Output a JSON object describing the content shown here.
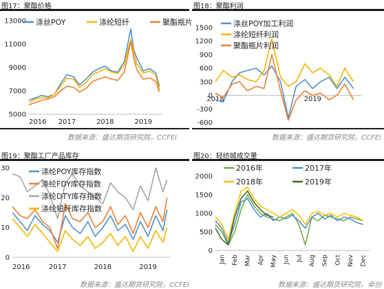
{
  "panels": [
    {
      "title": "图17：聚酯价格",
      "source": "数据来源：盛达期货研究院，CCFEI"
    },
    {
      "title": "图18：聚酯利润",
      "source": "数据来源：盛达期货研究院，CCFEI"
    },
    {
      "title": "图19：聚酯工厂产品库存",
      "source": "数据来源：盛达期货研究院，CCFEI"
    },
    {
      "title": "图20：轻纺城成交量",
      "source": "数据来源：盛达期货研究院，卓创"
    }
  ],
  "chart_data": [
    {
      "type": "line",
      "title": "图17：聚酯价格",
      "ylim": [
        5000,
        13000
      ],
      "yticks": [
        "13000",
        "11000",
        "9000",
        "7000",
        "5000"
      ],
      "xticks": [
        "2016",
        "2017",
        "2018",
        "2019"
      ],
      "legend_position": "top",
      "colors": {
        "涤丝POY": "#4f8fcc",
        "涤纶短纤": "#f2b500",
        "聚酯瓶片": "#ed7d31"
      },
      "series": [
        {
          "name": "涤丝POY",
          "x": [
            2016.0,
            2016.17,
            2016.33,
            2016.5,
            2016.67,
            2016.83,
            2017.0,
            2017.17,
            2017.33,
            2017.5,
            2017.67,
            2017.83,
            2018.0,
            2018.17,
            2018.33,
            2018.5,
            2018.58,
            2018.67,
            2018.75,
            2018.83,
            2019.0,
            2019.17,
            2019.33,
            2019.42
          ],
          "values": [
            6200,
            6400,
            6600,
            6500,
            6700,
            7600,
            8400,
            8200,
            7500,
            8000,
            8600,
            8900,
            9100,
            8700,
            8600,
            9500,
            10800,
            12300,
            10500,
            9800,
            8700,
            8900,
            8500,
            7400
          ]
        },
        {
          "name": "涤纶短纤",
          "x": [
            2016.0,
            2016.17,
            2016.33,
            2016.5,
            2016.67,
            2016.83,
            2017.0,
            2017.17,
            2017.33,
            2017.5,
            2017.67,
            2017.83,
            2018.0,
            2018.17,
            2018.33,
            2018.5,
            2018.58,
            2018.67,
            2018.75,
            2018.83,
            2019.0,
            2019.17,
            2019.33,
            2019.42
          ],
          "values": [
            6000,
            6300,
            6400,
            6400,
            6700,
            7400,
            8100,
            8000,
            7300,
            7700,
            8400,
            8600,
            8900,
            8600,
            8500,
            9200,
            10300,
            11400,
            10300,
            9300,
            8500,
            8700,
            8300,
            7100
          ]
        },
        {
          "name": "聚酯瓶片",
          "x": [
            2016.0,
            2016.17,
            2016.33,
            2016.5,
            2016.67,
            2016.83,
            2017.0,
            2017.17,
            2017.33,
            2017.5,
            2017.67,
            2017.83,
            2018.0,
            2018.17,
            2018.33,
            2018.5,
            2018.58,
            2018.67,
            2018.75,
            2018.83,
            2019.0,
            2019.17,
            2019.33,
            2019.42
          ],
          "values": [
            5800,
            6000,
            6200,
            6300,
            6500,
            7000,
            7400,
            7300,
            6900,
            7200,
            7800,
            8000,
            8200,
            8000,
            7900,
            8600,
            9800,
            11200,
            9800,
            8800,
            8000,
            8100,
            7800,
            6900
          ]
        }
      ]
    },
    {
      "type": "line",
      "title": "图18：聚酯利润",
      "ylim": [
        -600,
        1500
      ],
      "yticks": [
        "1500",
        "1200",
        "900",
        "600",
        "300",
        "0",
        "-300",
        "-600"
      ],
      "xticks": [
        "2018",
        "2019"
      ],
      "legend_position": "top",
      "colors": {
        "涤丝POY加工利润": "#4f8fcc",
        "涤纶短纤利润": "#f2b500",
        "聚酯瓶片利润": "#ed7d31"
      },
      "series": [
        {
          "name": "涤丝POY加工利润",
          "x": [
            2018.0,
            2018.08,
            2018.17,
            2018.25,
            2018.33,
            2018.42,
            2018.5,
            2018.58,
            2018.67,
            2018.75,
            2018.83,
            2018.92,
            2019.0,
            2019.08,
            2019.17,
            2019.25,
            2019.33,
            2019.42
          ],
          "values": [
            -100,
            -150,
            300,
            500,
            550,
            600,
            450,
            650,
            300,
            -500,
            200,
            350,
            150,
            300,
            400,
            150,
            400,
            150
          ]
        },
        {
          "name": "涤纶短纤利润",
          "x": [
            2018.0,
            2018.08,
            2018.17,
            2018.25,
            2018.33,
            2018.42,
            2018.5,
            2018.58,
            2018.67,
            2018.75,
            2018.83,
            2018.92,
            2019.0,
            2019.08,
            2019.17,
            2019.25,
            2019.33,
            2019.42
          ],
          "values": [
            300,
            550,
            400,
            450,
            350,
            300,
            550,
            1250,
            400,
            200,
            300,
            700,
            500,
            600,
            450,
            200,
            600,
            300
          ]
        },
        {
          "name": "聚酯瓶片利润",
          "x": [
            2018.0,
            2018.08,
            2018.17,
            2018.25,
            2018.33,
            2018.42,
            2018.5,
            2018.58,
            2018.67,
            2018.75,
            2018.83,
            2018.92,
            2019.0,
            2019.08,
            2019.17,
            2019.25,
            2019.33,
            2019.42
          ],
          "values": [
            50,
            -50,
            250,
            300,
            100,
            200,
            150,
            900,
            100,
            -550,
            -100,
            100,
            0,
            50,
            -100,
            0,
            250,
            -100
          ]
        }
      ]
    },
    {
      "type": "line",
      "title": "图19：聚酯工厂产品库存",
      "ylim": [
        0,
        30
      ],
      "yticks": [
        "30",
        "20",
        "10",
        "0"
      ],
      "xticks": [
        "2016",
        "2017",
        "2018",
        "2019"
      ],
      "legend_position": "top-left",
      "colors": {
        "涤纶POY库存指数": "#4f8fcc",
        "涤纶FDY库存指数": "#ed7d31",
        "涤纶DTY库存指数": "#a5a5a5",
        "涤纶短纤库存指数": "#f2b500"
      },
      "series": [
        {
          "name": "涤纶POY库存指数",
          "x": [
            2016.0,
            2016.17,
            2016.33,
            2016.5,
            2016.67,
            2016.83,
            2017.0,
            2017.17,
            2017.33,
            2017.5,
            2017.67,
            2017.83,
            2018.0,
            2018.17,
            2018.33,
            2018.5,
            2018.67,
            2018.83,
            2019.0,
            2019.17,
            2019.33,
            2019.42
          ],
          "values": [
            15,
            12,
            9,
            14,
            11,
            9,
            5,
            14,
            10,
            8,
            12,
            7,
            10,
            14,
            9,
            11,
            6,
            12,
            7,
            14,
            9,
            16
          ]
        },
        {
          "name": "涤纶FDY库存指数",
          "x": [
            2016.0,
            2016.17,
            2016.33,
            2016.5,
            2016.67,
            2016.83,
            2017.0,
            2017.17,
            2017.33,
            2017.5,
            2017.67,
            2017.83,
            2018.0,
            2018.17,
            2018.33,
            2018.5,
            2018.67,
            2018.83,
            2019.0,
            2019.17,
            2019.33,
            2019.42
          ],
          "values": [
            17,
            14,
            13,
            16,
            12,
            10,
            3,
            18,
            13,
            12,
            15,
            10,
            12,
            17,
            11,
            14,
            8,
            15,
            10,
            17,
            12,
            20
          ]
        },
        {
          "name": "涤纶DTY库存指数",
          "x": [
            2016.0,
            2016.17,
            2016.33,
            2016.5,
            2016.67,
            2016.83,
            2017.0,
            2017.17,
            2017.33,
            2017.5,
            2017.67,
            2017.83,
            2018.0,
            2018.17,
            2018.33,
            2018.5,
            2018.67,
            2018.83,
            2019.0,
            2019.17,
            2019.33,
            2019.42
          ],
          "values": [
            28,
            27,
            22,
            24,
            26,
            21,
            13,
            25,
            28,
            24,
            22,
            20,
            18,
            25,
            22,
            20,
            16,
            24,
            19,
            30,
            22,
            26
          ]
        },
        {
          "name": "涤纶短纤库存指数",
          "x": [
            2016.0,
            2016.17,
            2016.33,
            2016.5,
            2016.67,
            2016.83,
            2017.0,
            2017.17,
            2017.33,
            2017.5,
            2017.67,
            2017.83,
            2018.0,
            2018.17,
            2018.33,
            2018.5,
            2018.67,
            2018.83,
            2019.0,
            2019.17,
            2019.33,
            2019.42
          ],
          "values": [
            13,
            10,
            7,
            11,
            8,
            5,
            2,
            9,
            6,
            4,
            7,
            3,
            5,
            8,
            4,
            7,
            2,
            7,
            3,
            9,
            5,
            10
          ]
        }
      ]
    },
    {
      "type": "line",
      "title": "图20：轻纺城成交量",
      "ylim": [
        0,
        2000
      ],
      "yticks": [
        "2000",
        "1500",
        "1000",
        "500",
        "0"
      ],
      "categories": [
        "Jan",
        "Feb",
        "Mar",
        "Apr",
        "May",
        "Jun",
        "Jul",
        "Aug",
        "Sep",
        "Oct",
        "Nov",
        "Dec"
      ],
      "legend_position": "top",
      "colors": {
        "2016年": "#70ad47",
        "2017年": "#4f8fcc",
        "2018年": "#ffc000",
        "2019年": "#3a6a2a"
      },
      "series": [
        {
          "name": "2016年",
          "x": [
            0,
            0.5,
            1,
            1.5,
            2,
            2.5,
            3,
            3.5,
            4,
            4.5,
            5,
            5.5,
            6,
            6.5,
            7,
            7.5,
            8,
            8.5,
            9,
            9.5,
            10,
            10.5,
            11,
            11.5
          ],
          "values": [
            700,
            500,
            150,
            500,
            1100,
            1500,
            1200,
            1000,
            900,
            850,
            800,
            900,
            1000,
            700,
            150,
            900,
            800,
            950,
            900,
            850,
            800,
            900,
            850,
            800
          ]
        },
        {
          "name": "2017年",
          "x": [
            0,
            0.5,
            1,
            1.5,
            2,
            2.5,
            3,
            3.5,
            4,
            4.5,
            5,
            5.5,
            6,
            6.5,
            7,
            7.5,
            8,
            8.5,
            9,
            9.5,
            10,
            10.5,
            11,
            11.5
          ],
          "values": [
            800,
            600,
            200,
            700,
            1300,
            1400,
            1100,
            900,
            1000,
            800,
            900,
            850,
            950,
            800,
            600,
            900,
            1000,
            850,
            950,
            800,
            900,
            850,
            750,
            700
          ]
        },
        {
          "name": "2018年",
          "x": [
            0,
            0.5,
            1,
            1.5,
            2,
            2.5,
            3,
            3.5,
            4,
            4.5,
            5,
            5.5,
            6,
            6.5,
            7,
            7.5,
            8,
            8.5,
            9,
            9.5,
            10,
            10.5,
            11,
            11.5
          ],
          "values": [
            900,
            700,
            300,
            1000,
            1600,
            1700,
            1400,
            1200,
            1100,
            1000,
            900,
            1000,
            1100,
            950,
            700,
            1000,
            1050,
            950,
            1000,
            900,
            1000,
            950,
            900,
            800
          ]
        },
        {
          "name": "2019年",
          "x": [
            0,
            0.5,
            1,
            1.5,
            2,
            2.5,
            3,
            3.5,
            4,
            4.5
          ],
          "values": [
            600,
            300,
            150,
            900,
            1400,
            1600,
            1300,
            1100,
            950,
            900
          ]
        }
      ]
    }
  ]
}
